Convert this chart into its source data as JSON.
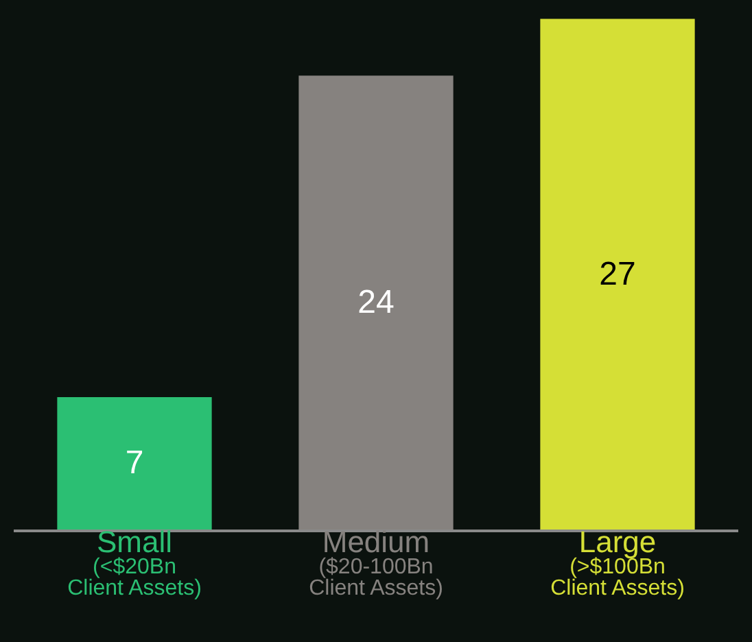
{
  "chart_data": {
    "type": "bar",
    "categories": [
      "Small\n(<$20Bn\nClient Assets)",
      "Medium\n($20-100Bn\nClient Assets)",
      "Large\n(>$100Bn\nClient Assets)"
    ],
    "values": [
      7,
      24,
      27
    ],
    "colors": [
      "#2bbf73",
      "#86827f",
      "#d5df36"
    ],
    "data_labels": true,
    "grid": false,
    "legend": false
  }
}
